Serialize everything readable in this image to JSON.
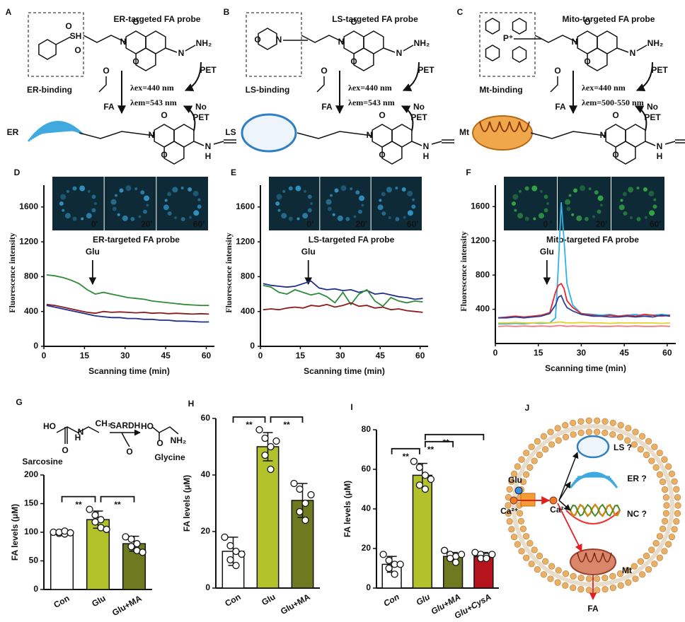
{
  "top_panels": [
    {
      "letter": "A",
      "title": "ER-targeted FA probe",
      "binding": "ER-binding",
      "ex": "λex=440 nm",
      "em": "λem=543 nm",
      "fa": "FA",
      "pet": "PET",
      "no_pet": [
        "No",
        "PET"
      ],
      "organelle": "ER",
      "binding_atoms": [
        "SH",
        "O",
        "O"
      ],
      "atoms": [
        "O",
        "N",
        "O",
        "N",
        "NH₂"
      ],
      "product_atoms": [
        "O",
        "N",
        "O",
        "N",
        "H"
      ],
      "fa_atom": "O"
    },
    {
      "letter": "B",
      "title": "LS-targeted FA probe",
      "binding": "LS-binding",
      "ex": "λex=440 nm",
      "em": "λem=543 nm",
      "fa": "FA",
      "pet": "PET",
      "no_pet": [
        "No",
        "PET"
      ],
      "organelle": "LS",
      "binding_atoms": [
        "O",
        "N"
      ],
      "atoms": [
        "O",
        "N",
        "O",
        "N",
        "NH₂"
      ],
      "product_atoms": [
        "O",
        "N",
        "O",
        "N",
        "H"
      ],
      "fa_atom": "O"
    },
    {
      "letter": "C",
      "title": "Mito-targeted FA probe",
      "binding": "Mt-binding",
      "ex": "λex=440 nm",
      "em": "λem=500-550 nm",
      "fa": "FA",
      "pet": "PET",
      "no_pet": [
        "No",
        "PET"
      ],
      "organelle": "Mt",
      "binding_atoms": [
        "P⁺"
      ],
      "atoms": [
        "O",
        "N",
        "O",
        "N",
        "NH₂"
      ],
      "product_atoms": [
        "O",
        "N",
        "O",
        "N",
        "H"
      ],
      "fa_atom": "O"
    }
  ],
  "chart_data": [
    {
      "type": "line",
      "letter": "D",
      "title": "ER-targeted FA probe",
      "x_label": "Scanning time (min)",
      "y_label": "Fluorescence intensity",
      "annotation": {
        "text": "Glu",
        "x": 18
      },
      "inset_labels": [
        "0′",
        "20′",
        "60′"
      ],
      "inset_color": "#3aa8e0",
      "x": [
        1,
        4,
        7,
        10,
        13,
        16,
        19,
        22,
        25,
        28,
        31,
        34,
        37,
        40,
        43,
        46,
        49,
        52,
        55,
        58,
        61
      ],
      "series": [
        {
          "color": "#2e8b3a",
          "values": [
            820,
            810,
            790,
            760,
            720,
            650,
            600,
            620,
            600,
            580,
            560,
            550,
            540,
            520,
            510,
            500,
            490,
            480,
            475,
            470,
            470
          ]
        },
        {
          "color": "#8b1a1a",
          "values": [
            480,
            470,
            450,
            430,
            410,
            390,
            380,
            400,
            390,
            395,
            390,
            385,
            390,
            380,
            385,
            375,
            380,
            375,
            370,
            375,
            370
          ]
        },
        {
          "color": "#1f2f8a",
          "values": [
            470,
            450,
            430,
            410,
            390,
            370,
            350,
            340,
            330,
            330,
            320,
            320,
            310,
            310,
            300,
            300,
            290,
            290,
            285,
            280,
            280
          ]
        }
      ],
      "xlim": [
        0,
        63
      ],
      "ylim": [
        0,
        1850
      ],
      "xticks": [
        0,
        15,
        30,
        45,
        60
      ],
      "yticks": [
        0,
        400,
        800,
        1200,
        1600
      ]
    },
    {
      "type": "line",
      "letter": "E",
      "title": "LS-targeted FA probe",
      "x_label": "Scanning time (min)",
      "y_label": "Fluorescence intensity",
      "annotation": {
        "text": "Glu",
        "x": 18
      },
      "inset_labels": [
        "0′",
        "20′",
        "60′"
      ],
      "inset_color": "#3aa8e0",
      "x": [
        1,
        4,
        7,
        10,
        13,
        16,
        19,
        22,
        25,
        28,
        31,
        34,
        37,
        40,
        43,
        46,
        49,
        52,
        55,
        58,
        61
      ],
      "series": [
        {
          "color": "#1f2f8a",
          "values": [
            720,
            700,
            690,
            680,
            690,
            720,
            750,
            670,
            650,
            660,
            640,
            650,
            620,
            640,
            600,
            610,
            590,
            570,
            560,
            540,
            550
          ]
        },
        {
          "color": "#2e8b3a",
          "values": [
            700,
            680,
            620,
            600,
            650,
            620,
            590,
            610,
            570,
            500,
            620,
            480,
            600,
            650,
            520,
            460,
            560,
            520,
            500,
            520,
            510
          ]
        },
        {
          "color": "#8b1a1a",
          "values": [
            420,
            430,
            420,
            440,
            450,
            440,
            470,
            460,
            480,
            450,
            470,
            500,
            460,
            470,
            440,
            450,
            420,
            430,
            410,
            400,
            390
          ]
        }
      ],
      "xlim": [
        0,
        63
      ],
      "ylim": [
        0,
        1850
      ],
      "xticks": [
        0,
        15,
        30,
        45,
        60
      ],
      "yticks": [
        0,
        400,
        800,
        1200,
        1600
      ]
    },
    {
      "type": "line",
      "letter": "F",
      "title": "Mito-targeted FA probe",
      "x_label": "Scanning time (min)",
      "y_label": "Fluorescence intensity",
      "annotation": {
        "text": "Glu",
        "x": 18
      },
      "inset_labels": [
        "0 ′",
        "20′",
        "60′"
      ],
      "inset_color": "#3fc24a",
      "x": [
        1,
        4,
        7,
        10,
        13,
        16,
        19,
        21,
        22,
        23,
        24,
        25,
        27,
        30,
        34,
        37,
        40,
        43,
        46,
        49,
        52,
        55,
        58,
        61
      ],
      "series": [
        {
          "color": "#2fb2e6",
          "values": [
            230,
            230,
            235,
            230,
            240,
            235,
            240,
            300,
            900,
            1650,
            1200,
            700,
            450,
            350,
            340,
            330,
            340,
            320,
            330,
            340,
            320,
            330,
            340,
            330
          ]
        },
        {
          "color": "#e8262b",
          "values": [
            300,
            310,
            320,
            310,
            320,
            330,
            360,
            600,
            680,
            700,
            640,
            500,
            420,
            350,
            330,
            320,
            330,
            320,
            330,
            320,
            340,
            330,
            320,
            330
          ]
        },
        {
          "color": "#2b3f99",
          "values": [
            300,
            300,
            310,
            300,
            310,
            320,
            350,
            450,
            540,
            560,
            480,
            420,
            380,
            340,
            320,
            320,
            310,
            310,
            320,
            310,
            320,
            310,
            330,
            320
          ]
        },
        {
          "color": "#e6d12a",
          "values": [
            240,
            240,
            245,
            240,
            240,
            245,
            240,
            245,
            250,
            250,
            245,
            240,
            240,
            245,
            240,
            240,
            235,
            240,
            240,
            240,
            240,
            240,
            235,
            240
          ]
        },
        {
          "color": "#f07c7c",
          "values": [
            200,
            205,
            200,
            205,
            200,
            205,
            200,
            205,
            210,
            210,
            205,
            200,
            205,
            200,
            205,
            200,
            200,
            205,
            200,
            205,
            200,
            200,
            205,
            200
          ]
        }
      ],
      "xlim": [
        0,
        63
      ],
      "ylim": [
        0,
        1850
      ],
      "xticks": [
        0,
        15,
        30,
        45,
        60
      ],
      "yticks": [
        400,
        800,
        1200,
        1600
      ]
    },
    {
      "type": "bar",
      "letter": "G",
      "y_label": "FA levels (μM)",
      "categories": [
        "Con",
        "Glu",
        "Glu+MA"
      ],
      "colors": [
        "#ffffff",
        "#b3c22b",
        "#6e7a1f"
      ],
      "values": [
        100,
        122,
        80
      ],
      "errors": [
        4,
        15,
        13
      ],
      "points": [
        [
          100,
          98,
          97,
          100,
          102,
          99
        ],
        [
          140,
          130,
          122,
          118,
          108,
          105
        ],
        [
          92,
          88,
          80,
          75,
          68,
          65
        ]
      ],
      "significance": [
        {
          "from": 0,
          "to": 1,
          "label": "**"
        },
        {
          "from": 1,
          "to": 2,
          "label": "**"
        }
      ],
      "ylim": [
        0,
        200
      ],
      "yticks": [
        0,
        50,
        100,
        150,
        200
      ],
      "scheme": {
        "enzyme": "SARDH",
        "reactant": "Sarcosine",
        "product": "Glycine",
        "atoms": [
          "HO",
          "O",
          "N",
          "H",
          "CH₃",
          "O",
          "HO",
          "O",
          "NH₂"
        ]
      }
    },
    {
      "type": "bar",
      "letter": "H",
      "y_label": "FA levels (μM)",
      "categories": [
        "Con",
        "Glu",
        "Glu+MA"
      ],
      "colors": [
        "#ffffff",
        "#b3c22b",
        "#6e7a1f"
      ],
      "values": [
        13,
        50,
        31
      ],
      "errors": [
        5,
        5,
        6
      ],
      "points": [
        [
          18,
          15,
          13,
          10,
          8,
          12
        ],
        [
          56,
          53,
          50,
          47,
          42,
          52
        ],
        [
          37,
          35,
          30,
          27,
          24,
          33
        ]
      ],
      "significance": [
        {
          "from": 0,
          "to": 1,
          "label": "**"
        },
        {
          "from": 1,
          "to": 2,
          "label": "**"
        }
      ],
      "ylim": [
        0,
        60
      ],
      "yticks": [
        0,
        20,
        40,
        60
      ]
    },
    {
      "type": "bar",
      "letter": "I",
      "y_label": "FA levels (μM)",
      "categories": [
        "Con",
        "Glu",
        "Glu+MA",
        "Glu+CysA"
      ],
      "colors": [
        "#ffffff",
        "#b3c22b",
        "#6e7a1f",
        "#b5141c"
      ],
      "values": [
        12,
        57,
        16,
        16
      ],
      "errors": [
        4,
        6,
        2,
        2
      ],
      "points": [
        [
          17,
          14,
          12,
          10,
          7,
          12
        ],
        [
          64,
          61,
          57,
          52,
          50,
          55
        ],
        [
          19,
          17,
          16,
          15,
          13,
          17
        ],
        [
          18,
          17,
          16,
          15,
          15,
          17
        ]
      ],
      "significance": [
        {
          "from": 0,
          "to": 1,
          "label": "**"
        },
        {
          "from": 1,
          "to": 2,
          "label": "**"
        },
        {
          "from": 1,
          "to": 3,
          "label": "**"
        }
      ],
      "ylim": [
        0,
        80
      ],
      "yticks": [
        0,
        20,
        40,
        60,
        80
      ]
    }
  ],
  "panel_j": {
    "letter": "J",
    "glu": "Glu",
    "ca_out": "Ca²⁺",
    "ca_in": "Ca²⁺",
    "ls": "LS ?",
    "er": "ER ?",
    "nc": "NC ?",
    "mt": "Mt",
    "fa": "FA"
  }
}
